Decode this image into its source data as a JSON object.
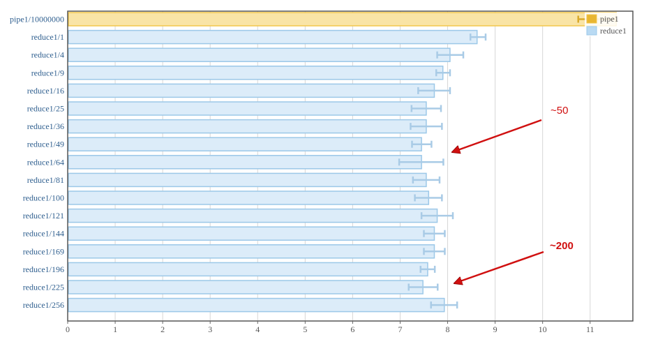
{
  "chart_data": {
    "type": "bar",
    "orientation": "horizontal",
    "categories": [
      "pipe1/10000000",
      "reduce1/1",
      "reduce1/4",
      "reduce1/9",
      "reduce1/16",
      "reduce1/25",
      "reduce1/36",
      "reduce1/49",
      "reduce1/64",
      "reduce1/81",
      "reduce1/100",
      "reduce1/121",
      "reduce1/144",
      "reduce1/169",
      "reduce1/196",
      "reduce1/225",
      "reduce1/256"
    ],
    "series": [
      {
        "name": "pipe1",
        "color": "#f2c64c",
        "fill": "#f9e4a6",
        "points": [
          {
            "category": "pipe1/10000000",
            "value": 11.55,
            "err_low": 10.75,
            "err_high": 11.55
          }
        ]
      },
      {
        "name": "reduce1",
        "color": "#9cc8e8",
        "fill": "#dcecf9",
        "points": [
          {
            "category": "reduce1/1",
            "value": 8.62,
            "err_low": 8.48,
            "err_high": 8.8
          },
          {
            "category": "reduce1/4",
            "value": 8.05,
            "err_low": 7.78,
            "err_high": 8.33
          },
          {
            "category": "reduce1/9",
            "value": 7.9,
            "err_low": 7.76,
            "err_high": 8.05
          },
          {
            "category": "reduce1/16",
            "value": 7.72,
            "err_low": 7.38,
            "err_high": 8.05
          },
          {
            "category": "reduce1/25",
            "value": 7.55,
            "err_low": 7.24,
            "err_high": 7.86
          },
          {
            "category": "reduce1/36",
            "value": 7.55,
            "err_low": 7.22,
            "err_high": 7.88
          },
          {
            "category": "reduce1/49",
            "value": 7.45,
            "err_low": 7.25,
            "err_high": 7.66
          },
          {
            "category": "reduce1/64",
            "value": 7.45,
            "err_low": 6.98,
            "err_high": 7.91
          },
          {
            "category": "reduce1/81",
            "value": 7.55,
            "err_low": 7.27,
            "err_high": 7.83
          },
          {
            "category": "reduce1/100",
            "value": 7.6,
            "err_low": 7.31,
            "err_high": 7.88
          },
          {
            "category": "reduce1/121",
            "value": 7.78,
            "err_low": 7.45,
            "err_high": 8.11
          },
          {
            "category": "reduce1/144",
            "value": 7.72,
            "err_low": 7.5,
            "err_high": 7.94
          },
          {
            "category": "reduce1/169",
            "value": 7.72,
            "err_low": 7.5,
            "err_high": 7.94
          },
          {
            "category": "reduce1/196",
            "value": 7.58,
            "err_low": 7.43,
            "err_high": 7.73
          },
          {
            "category": "reduce1/225",
            "value": 7.48,
            "err_low": 7.18,
            "err_high": 7.79
          },
          {
            "category": "reduce1/256",
            "value": 7.93,
            "err_low": 7.65,
            "err_high": 8.2
          }
        ]
      }
    ],
    "xlim": [
      0,
      11.9
    ],
    "x_ticks": [
      "0",
      "1",
      "2",
      "3",
      "4",
      "5",
      "6",
      "7",
      "8",
      "9",
      "10",
      "11"
    ],
    "grid": true,
    "legend": {
      "placement": "top-right",
      "entries": [
        "pipe1",
        "reduce1"
      ]
    },
    "annotations": [
      {
        "text": "~50",
        "points_to": "reduce1/49",
        "bold": false,
        "color": "#d01010"
      },
      {
        "text": "~200",
        "points_to": "reduce1/225",
        "bold": true,
        "color": "#d01010"
      }
    ]
  }
}
